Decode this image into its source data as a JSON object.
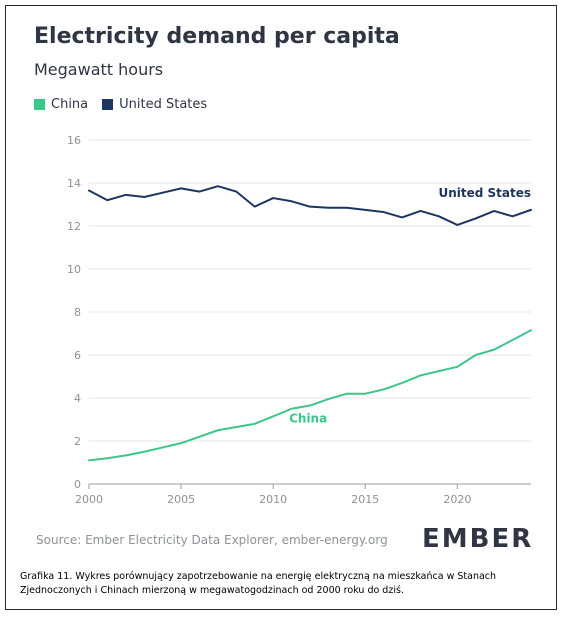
{
  "header": {
    "title": "Electricity demand per capita",
    "subtitle": "Megawatt hours"
  },
  "legend": [
    {
      "label": "China",
      "color": "#3cc68a"
    },
    {
      "label": "United States",
      "color": "#1e3461"
    }
  ],
  "footer": {
    "source": "Source: Ember Electricity Data Explorer, ember-energy.org",
    "logo": "EMBER"
  },
  "caption": "Grafika 11. Wykres porównujący zapotrzebowanie na energię elektryczną na mieszkańca w Stanach Zjednoczonych i Chinach mierzoną w megawatogodzinach od 2000 roku do dziś.",
  "chart_data": {
    "type": "line",
    "title": "Electricity demand per capita",
    "subtitle": "Megawatt hours",
    "xlabel": "",
    "ylabel": "",
    "xlim": [
      2000,
      2024
    ],
    "ylim": [
      0,
      16
    ],
    "x_ticks": [
      2000,
      2005,
      2010,
      2015,
      2020
    ],
    "y_ticks": [
      0,
      2,
      4,
      6,
      8,
      10,
      12,
      14,
      16
    ],
    "grid": "horizontal",
    "legend_position": "top-left",
    "x": [
      2000,
      2001,
      2002,
      2003,
      2004,
      2005,
      2006,
      2007,
      2008,
      2009,
      2010,
      2011,
      2012,
      2013,
      2014,
      2015,
      2016,
      2017,
      2018,
      2019,
      2020,
      2021,
      2022,
      2023,
      2024
    ],
    "series": [
      {
        "name": "China",
        "color": "#3cc68a",
        "direct_label": "China",
        "values": [
          1.1,
          1.2,
          1.33,
          1.5,
          1.7,
          1.9,
          2.2,
          2.5,
          2.65,
          2.8,
          3.15,
          3.5,
          3.65,
          3.95,
          4.2,
          4.2,
          4.4,
          4.7,
          5.05,
          5.25,
          5.45,
          6.0,
          6.25,
          6.7,
          7.15
        ]
      },
      {
        "name": "United States",
        "color": "#1e3461",
        "direct_label": "United States",
        "values": [
          13.65,
          13.2,
          13.45,
          13.35,
          13.55,
          13.75,
          13.6,
          13.85,
          13.6,
          12.9,
          13.3,
          13.15,
          12.9,
          12.85,
          12.85,
          12.75,
          12.65,
          12.4,
          12.7,
          12.45,
          12.05,
          12.35,
          12.7,
          12.45,
          12.75
        ]
      }
    ]
  }
}
